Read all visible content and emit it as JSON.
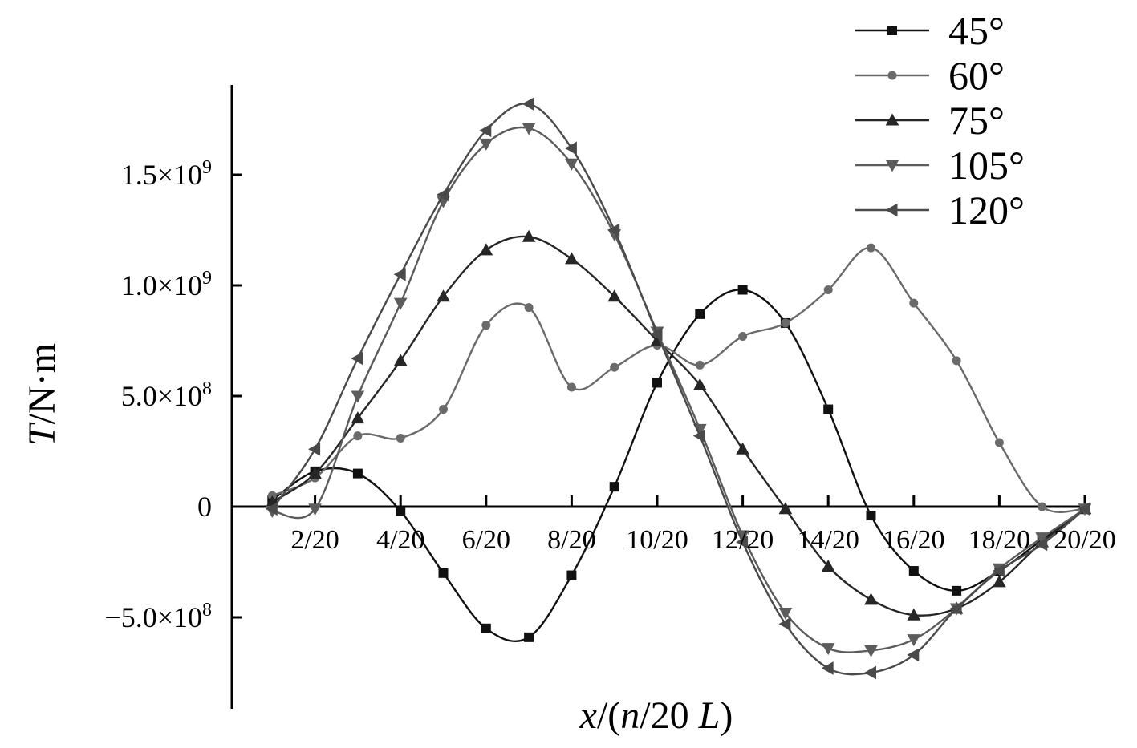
{
  "chart_data": {
    "type": "line",
    "title": "",
    "ylabel": {
      "italic": "T",
      "normal": "/N·m"
    },
    "xlabel": {
      "p1": "x",
      "p2": "/(",
      "p3": "n",
      "p4": "/20 ",
      "p5": "L",
      "p6": ")"
    },
    "x": [
      1,
      2,
      3,
      4,
      5,
      6,
      7,
      8,
      9,
      10,
      11,
      12,
      13,
      14,
      15,
      16,
      17,
      18,
      19,
      20
    ],
    "xticks": [
      {
        "value": 2,
        "label": "2/20"
      },
      {
        "value": 4,
        "label": "4/20"
      },
      {
        "value": 6,
        "label": "6/20"
      },
      {
        "value": 8,
        "label": "8/20"
      },
      {
        "value": 10,
        "label": "10/20"
      },
      {
        "value": 12,
        "label": "12/20"
      },
      {
        "value": 14,
        "label": "14/20"
      },
      {
        "value": 16,
        "label": "16/20"
      },
      {
        "value": 18,
        "label": "18/20"
      },
      {
        "value": 20,
        "label": "20/20"
      }
    ],
    "yticks": [
      {
        "value": -500000000,
        "mant": "−5.0×10",
        "exp": "8"
      },
      {
        "value": 0,
        "mant": "0",
        "exp": ""
      },
      {
        "value": 500000000,
        "mant": "5.0×10",
        "exp": "8"
      },
      {
        "value": 1000000000,
        "mant": "1.0×10",
        "exp": "9"
      },
      {
        "value": 1500000000,
        "mant": "1.5×10",
        "exp": "9"
      }
    ],
    "xlim": [
      0,
      20
    ],
    "ylim": [
      -900000000,
      1900000000
    ],
    "grid": false,
    "legend_position": "top-right",
    "series": [
      {
        "name": "45°",
        "marker": "square",
        "color": "#111111",
        "values": [
          30000000.0,
          160000000.0,
          150000000.0,
          -20000000.0,
          -300000000.0,
          -550000000.0,
          -590000000.0,
          -310000000.0,
          90000000.0,
          560000000.0,
          870000000.0,
          980000000.0,
          830000000.0,
          440000000.0,
          -40000000.0,
          -290000000.0,
          -380000000.0,
          -290000000.0,
          -150000000.0,
          -10000000.0
        ]
      },
      {
        "name": "60°",
        "marker": "dot",
        "color": "#6a6a6a",
        "values": [
          50000000.0,
          130000000.0,
          320000000.0,
          310000000.0,
          440000000.0,
          820000000.0,
          900000000.0,
          540000000.0,
          630000000.0,
          730000000.0,
          640000000.0,
          770000000.0,
          830000000.0,
          980000000.0,
          1170000000.0,
          920000000.0,
          660000000.0,
          290000000.0,
          0.0,
          -10000000.0
        ]
      },
      {
        "name": "75°",
        "marker": "triangle-up",
        "color": "#262626",
        "values": [
          20000000.0,
          150000000.0,
          400000000.0,
          660000000.0,
          950000000.0,
          1160000000.0,
          1220000000.0,
          1120000000.0,
          950000000.0,
          750000000.0,
          550000000.0,
          260000000.0,
          -10000000.0,
          -270000000.0,
          -420000000.0,
          -490000000.0,
          -460000000.0,
          -340000000.0,
          -160000000.0,
          -10000000.0
        ]
      },
      {
        "name": "105°",
        "marker": "triangle-down",
        "color": "#5c5c5c",
        "values": [
          -20000000.0,
          -10000000.0,
          500000000.0,
          920000000.0,
          1380000000.0,
          1640000000.0,
          1710000000.0,
          1550000000.0,
          1230000000.0,
          790000000.0,
          350000000.0,
          -130000000.0,
          -480000000.0,
          -640000000.0,
          -650000000.0,
          -600000000.0,
          -460000000.0,
          -280000000.0,
          -140000000.0,
          -10000000.0
        ]
      },
      {
        "name": "120°",
        "marker": "triangle-left",
        "color": "#4a4a4a",
        "values": [
          -10000000.0,
          260000000.0,
          670000000.0,
          1050000000.0,
          1410000000.0,
          1700000000.0,
          1820000000.0,
          1620000000.0,
          1250000000.0,
          780000000.0,
          320000000.0,
          -160000000.0,
          -530000000.0,
          -730000000.0,
          -750000000.0,
          -670000000.0,
          -460000000.0,
          -290000000.0,
          -170000000.0,
          -10000000.0
        ]
      }
    ]
  }
}
